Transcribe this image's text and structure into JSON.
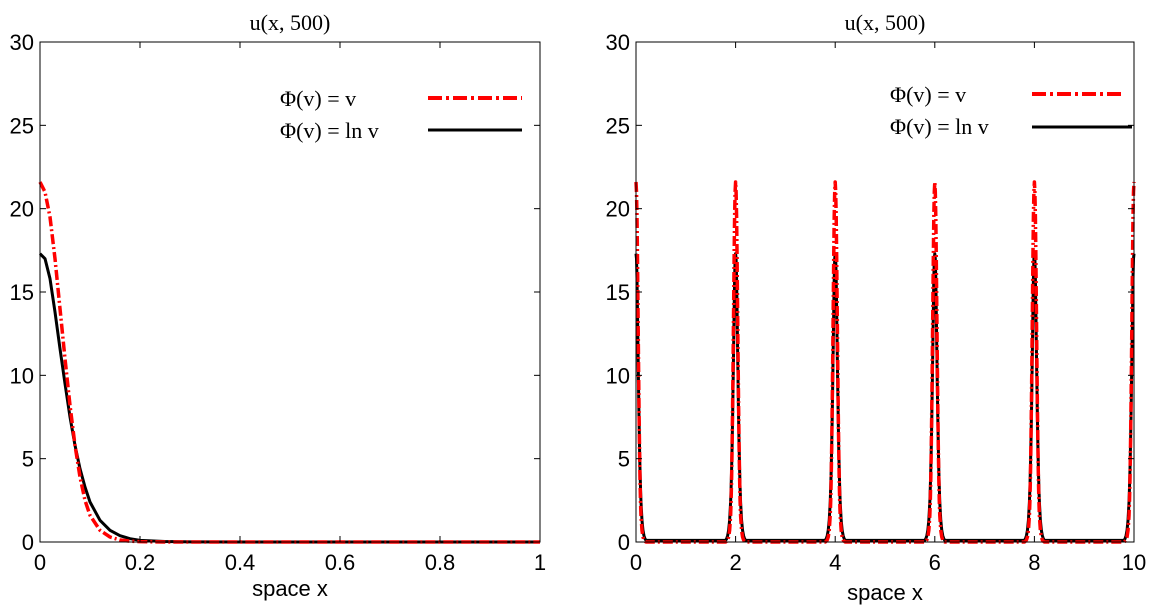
{
  "chart_data": [
    {
      "type": "line",
      "title": "u(x, 500)",
      "xlabel": "space x",
      "ylabel": "",
      "xlim": [
        0,
        1
      ],
      "ylim": [
        0,
        30
      ],
      "xticks": [
        0,
        0.2,
        0.4,
        0.6,
        0.8,
        1
      ],
      "xtick_labels": [
        "0",
        "0.2",
        "0.4",
        "0.6",
        "0.8",
        "1"
      ],
      "yticks": [
        0,
        5,
        10,
        15,
        20,
        25,
        30
      ],
      "ytick_labels": [
        "0",
        "5",
        "10",
        "15",
        "20",
        "25",
        "30"
      ],
      "grid": false,
      "legend_position": "top-right",
      "series": [
        {
          "name": "Φ(v) = v",
          "color": "#ff0000",
          "style": "dashdot",
          "x": [
            0,
            0.01,
            0.02,
            0.03,
            0.04,
            0.05,
            0.06,
            0.07,
            0.08,
            0.09,
            0.1,
            0.12,
            0.14,
            0.16,
            0.18,
            0.2,
            0.25,
            0.3,
            0.4,
            0.6,
            0.8,
            1.0
          ],
          "y": [
            21.6,
            21.0,
            19.5,
            17.0,
            14.0,
            11.0,
            8.2,
            5.8,
            3.9,
            2.5,
            1.6,
            0.7,
            0.3,
            0.12,
            0.05,
            0.02,
            0.0,
            0.0,
            0.0,
            0.0,
            0.0,
            0.0
          ]
        },
        {
          "name": "Φ(v) = ln v",
          "color": "#000000",
          "style": "solid",
          "x": [
            0,
            0.01,
            0.02,
            0.03,
            0.04,
            0.05,
            0.06,
            0.07,
            0.08,
            0.09,
            0.1,
            0.12,
            0.14,
            0.16,
            0.18,
            0.2,
            0.25,
            0.3,
            0.4,
            0.6,
            0.8,
            1.0
          ],
          "y": [
            17.3,
            17.0,
            15.8,
            13.8,
            11.6,
            9.5,
            7.5,
            5.8,
            4.4,
            3.3,
            2.4,
            1.3,
            0.7,
            0.38,
            0.2,
            0.1,
            0.03,
            0.01,
            0.0,
            0.0,
            0.0,
            0.0
          ]
        }
      ]
    },
    {
      "type": "line",
      "title": "u(x, 500)",
      "xlabel": "space x",
      "ylabel": "",
      "xlim": [
        0,
        10
      ],
      "ylim": [
        0,
        30
      ],
      "xticks": [
        0,
        2,
        4,
        6,
        8,
        10
      ],
      "xtick_labels": [
        "0",
        "2",
        "4",
        "6",
        "8",
        "10"
      ],
      "yticks": [
        0,
        5,
        10,
        15,
        20,
        25,
        30
      ],
      "ytick_labels": [
        "0",
        "5",
        "10",
        "15",
        "20",
        "25",
        "30"
      ],
      "grid": false,
      "legend_position": "top-right",
      "peak_centers": [
        0,
        2,
        4,
        6,
        8,
        10
      ],
      "series": [
        {
          "name": "Φ(v) = v",
          "color": "#ff0000",
          "style": "dashdot",
          "peak_profile_dx": [
            0,
            0.01,
            0.02,
            0.03,
            0.04,
            0.05,
            0.06,
            0.07,
            0.08,
            0.09,
            0.1,
            0.12,
            0.14,
            0.16,
            0.18,
            0.2
          ],
          "peak_profile_y": [
            21.6,
            21.0,
            19.5,
            17.0,
            14.0,
            11.0,
            8.2,
            5.8,
            3.9,
            2.5,
            1.6,
            0.7,
            0.3,
            0.12,
            0.05,
            0.0
          ]
        },
        {
          "name": "Φ(v) = ln v",
          "color": "#000000",
          "style": "solid",
          "peak_profile_dx": [
            0,
            0.01,
            0.02,
            0.03,
            0.04,
            0.05,
            0.06,
            0.07,
            0.08,
            0.09,
            0.1,
            0.12,
            0.14,
            0.16,
            0.18,
            0.2
          ],
          "peak_profile_y": [
            17.3,
            17.0,
            15.8,
            13.8,
            11.6,
            9.5,
            7.5,
            5.8,
            4.4,
            3.3,
            2.4,
            1.3,
            0.7,
            0.38,
            0.2,
            0.1
          ]
        }
      ]
    }
  ]
}
